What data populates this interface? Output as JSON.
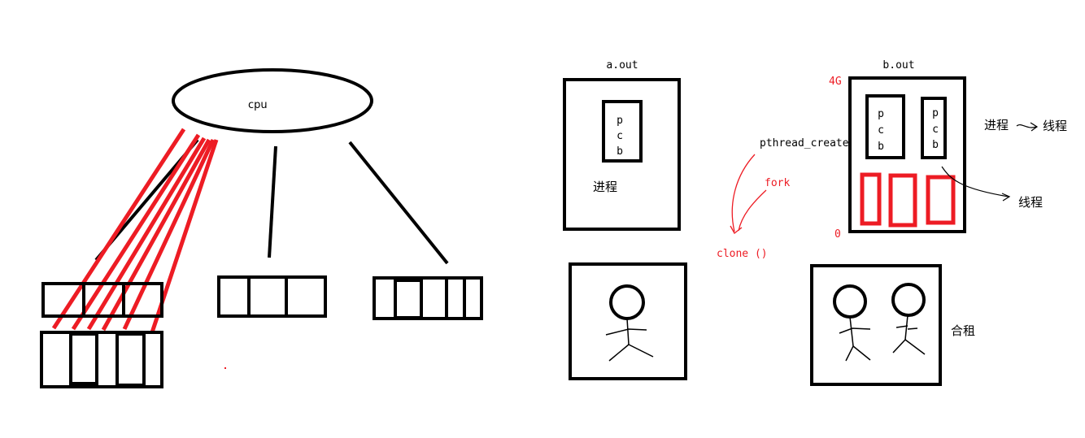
{
  "colors": {
    "ink": "#000000",
    "accent": "#ed1c24",
    "background": "#ffffff"
  },
  "cpu": {
    "label": "cpu"
  },
  "process_a": {
    "title": "a.out",
    "pcb_letters": [
      "p",
      "c",
      "b"
    ],
    "caption": "进程"
  },
  "process_b": {
    "title": "b.out",
    "top_address": "4G",
    "bottom_address": "0",
    "pcb_letters": [
      "p",
      "c",
      "b"
    ]
  },
  "calls": {
    "pthread_create": "pthread_create",
    "fork": "fork",
    "clone": "clone ()"
  },
  "notes": {
    "process": "进程",
    "thread_top": "线程",
    "thread": "线程",
    "shared": "合租"
  }
}
